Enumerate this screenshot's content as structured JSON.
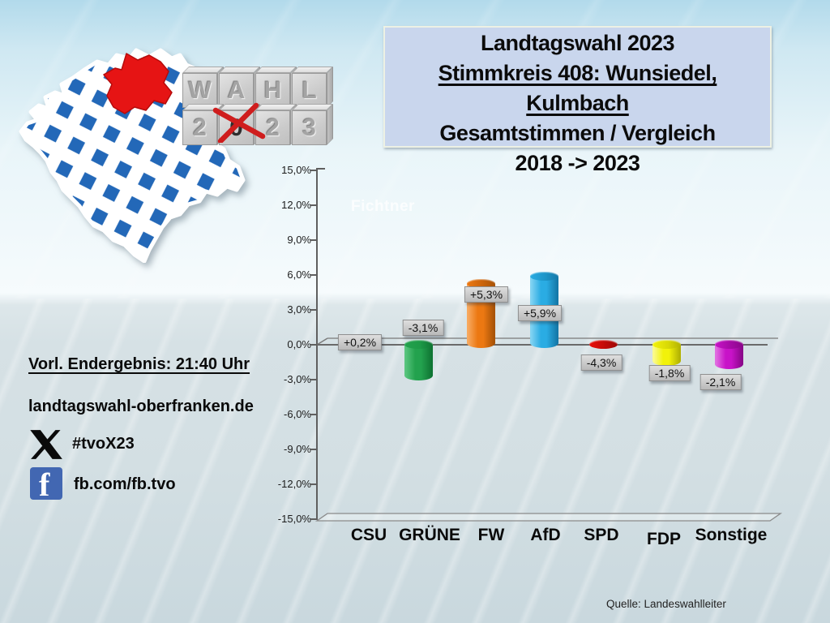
{
  "header": {
    "title_line1": "Landtagswahl 2023",
    "title_line2": "Stimmkreis 408: Wunsiedel,",
    "title_line3": "Kulmbach",
    "title_line4": "Gesamtstimmen / Vergleich",
    "title_line5": "2018 -> 2023",
    "box_color": "#c9d6ed"
  },
  "logo": {
    "row1": [
      "W",
      "A",
      "H",
      "L"
    ],
    "row2": [
      "2",
      "0",
      "2",
      "3"
    ],
    "crossed_block_index": 1,
    "flag_blue": "#2368b8",
    "highlight_red": "#e61414",
    "icons": [
      "bavaria-map-icon",
      "wahl-dice-icon",
      "ballot-cross-icon"
    ]
  },
  "info_panel": {
    "result_time": "Vorl. Endergebnis: 21:40 Uhr",
    "website": "landtagswahl-oberfranken.de",
    "x_hashtag": "#tvoX23",
    "facebook_handle": "fb.com/fb.tvo",
    "facebook_blue": "#4267b2",
    "icons": [
      "x-logo-icon",
      "facebook-icon"
    ]
  },
  "watermark": "Fichtner",
  "source": "Quelle: Landeswahlleiter",
  "chart_data": {
    "type": "bar",
    "title": "Gesamtstimmen / Vergleich 2018 -> 2023",
    "categories": [
      "CSU",
      "GRÜNE",
      "FW",
      "AfD",
      "SPD",
      "FDP",
      "Sonstige"
    ],
    "values": [
      0.2,
      -3.1,
      5.3,
      5.9,
      -4.3,
      -1.8,
      -2.1
    ],
    "value_labels": [
      "+0,2%",
      "-3,1%",
      "+5,3%",
      "+5,9%",
      "-4,3%",
      "-1,8%",
      "-2,1%"
    ],
    "unit": "percentage points",
    "ylim": [
      -15,
      15
    ],
    "ytick_step": 3,
    "ytick_labels": [
      "15,0%",
      "12,0%",
      "9,0%",
      "6,0%",
      "3,0%",
      "0,0%",
      "-3,0%",
      "-6,0%",
      "-9,0%",
      "-12,0%",
      "-15,0%"
    ],
    "grid": false,
    "legend": false,
    "bar_style": "3d-cylinder",
    "bar_colors": [
      {
        "main": "#232323",
        "light": "#575757",
        "dark": "#000000",
        "top": "#111111"
      },
      {
        "main": "#23a24e",
        "light": "#58c47d",
        "dark": "#0f7533",
        "top": "#1d9a47"
      },
      {
        "main": "#ec7812",
        "light": "#f7a95f",
        "dark": "#a85307",
        "top": "#ca630b"
      },
      {
        "main": "#2aace3",
        "light": "#80d2f2",
        "dark": "#1578a8",
        "top": "#1e94c7"
      },
      {
        "main": "#e90f0b",
        "light": "#f6６b68",
        "dark": "#9e0604",
        "top": "#c10b08"
      },
      {
        "main": "#f2f20a",
        "light": "#fafa8e",
        "dark": "#b2b204",
        "top": "#d9d906"
      },
      {
        "main": "#c813c8",
        "light": "#e06ce0",
        "dark": "#8a078a",
        "top": "#a50ba5"
      }
    ]
  }
}
